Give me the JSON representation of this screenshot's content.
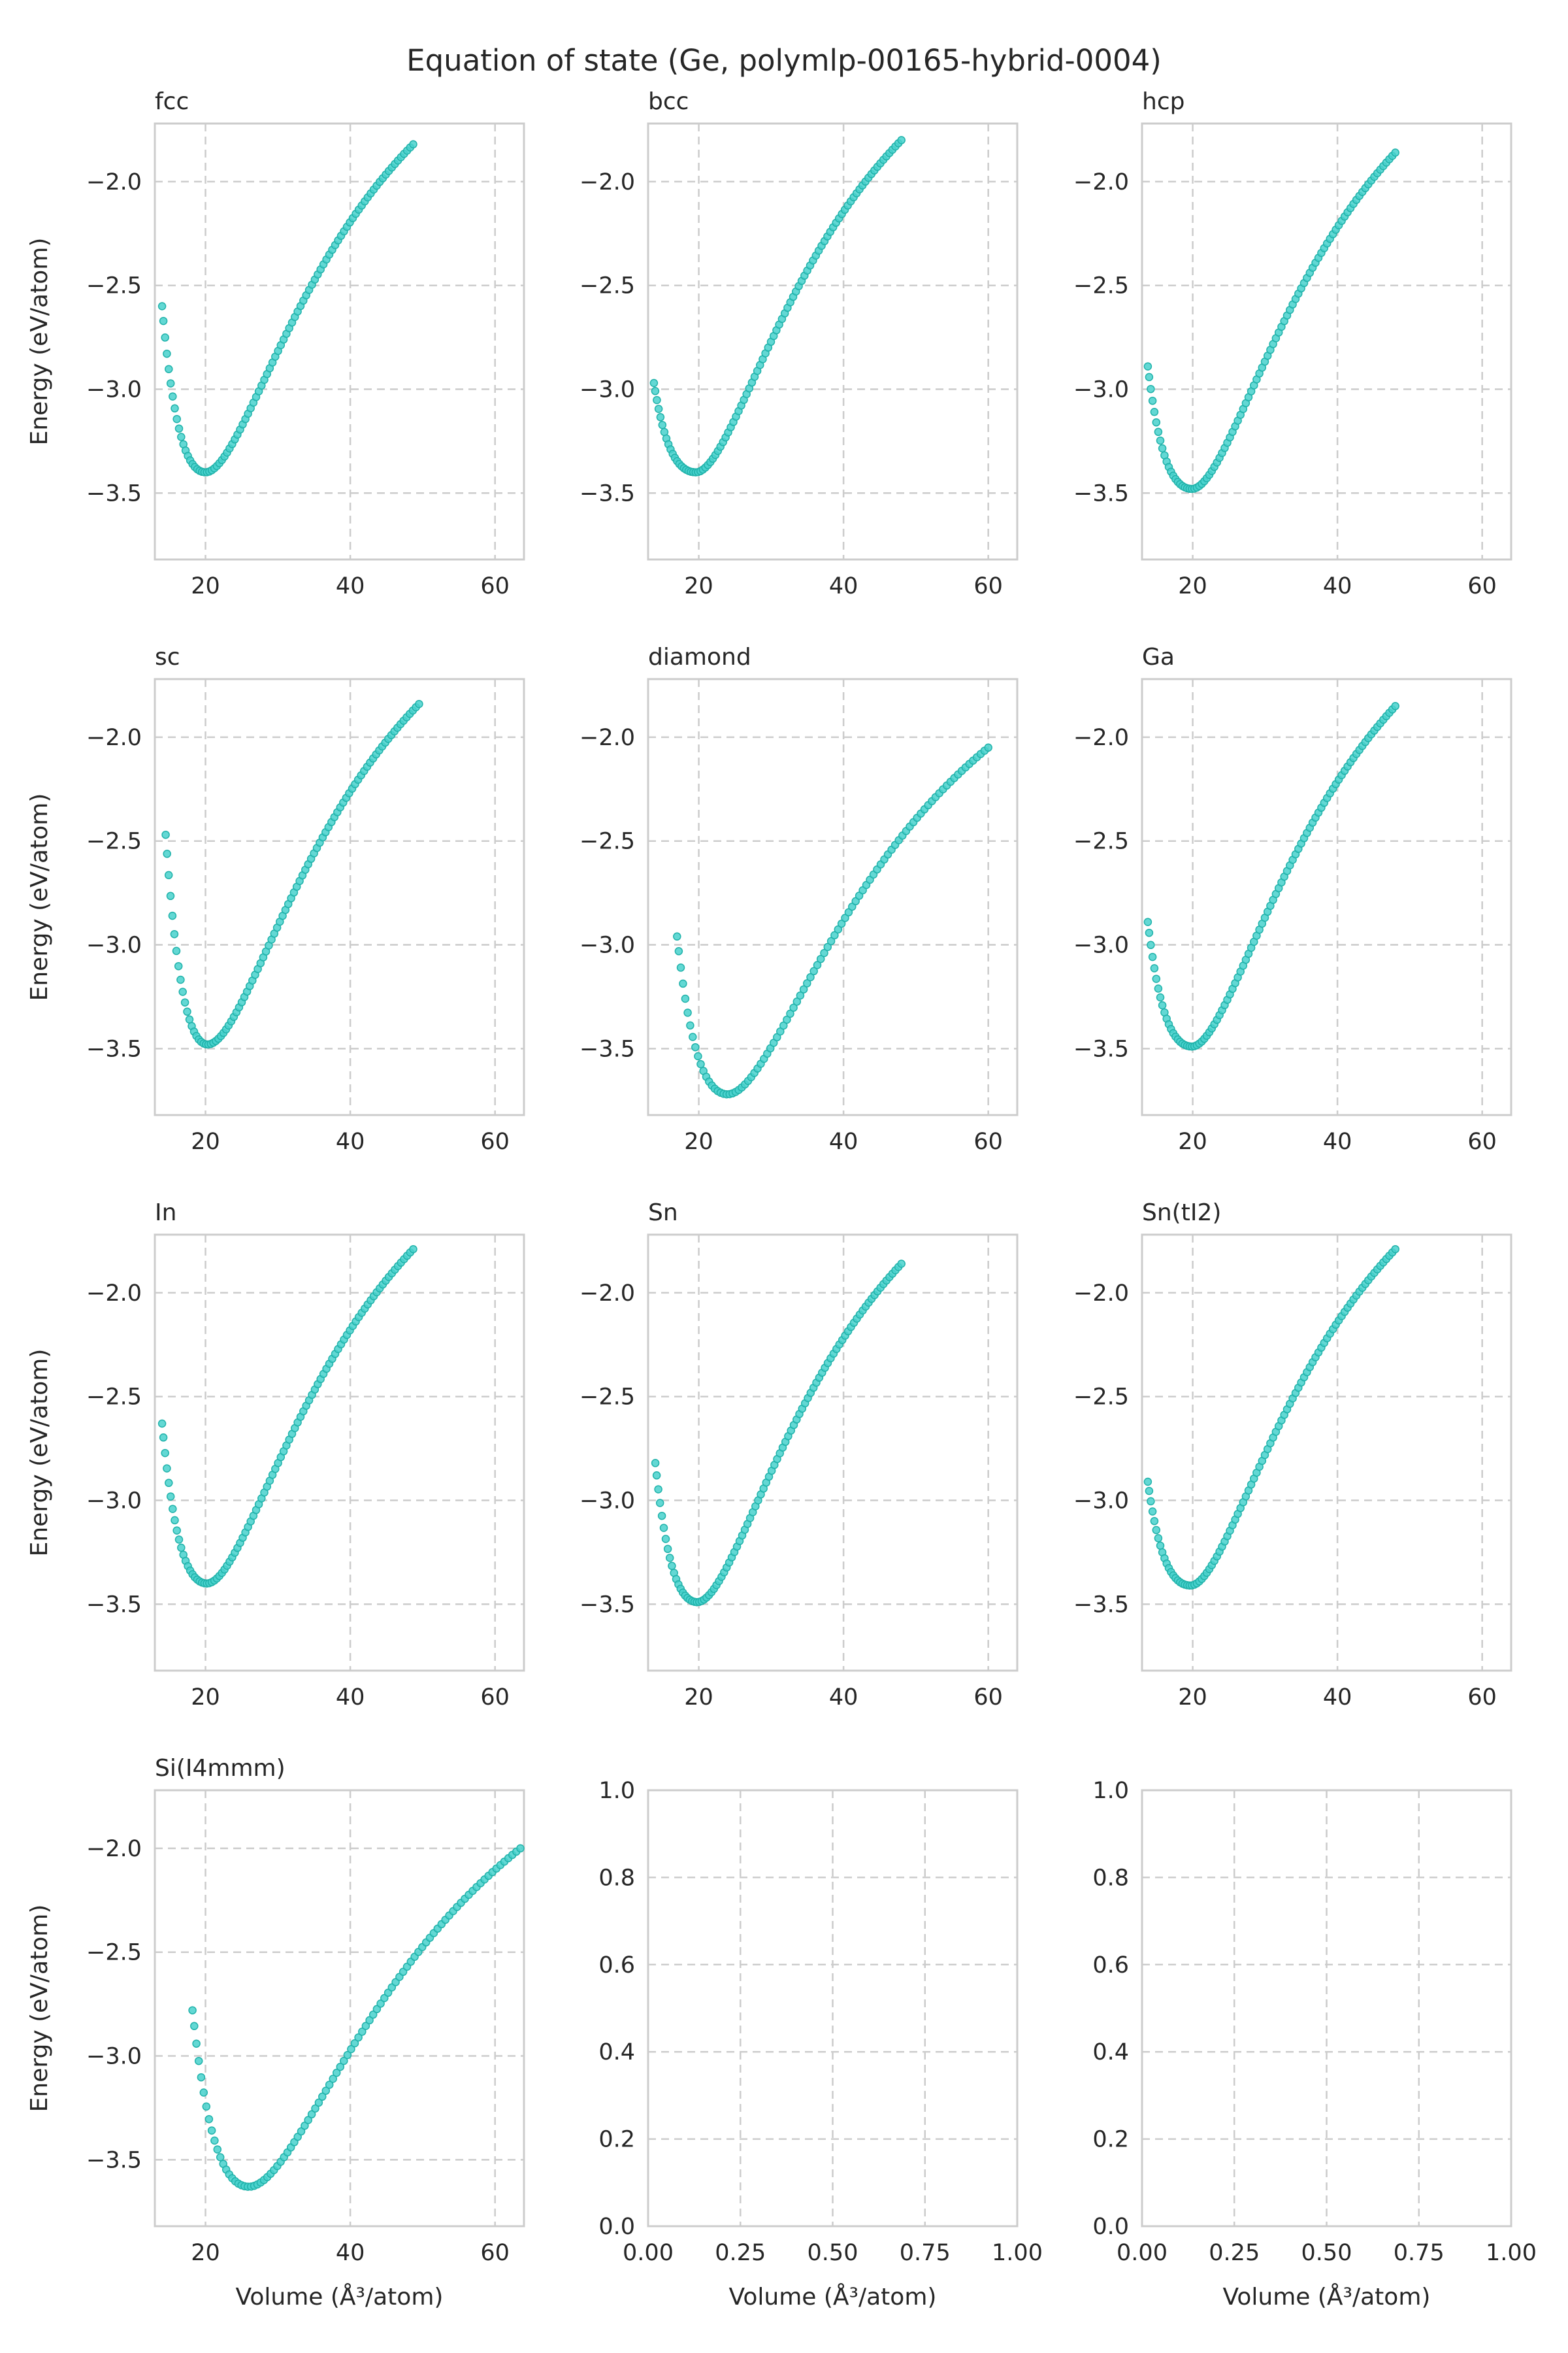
{
  "figure": {
    "title": "Equation of state (Ge, polymlp-00165-hybrid-0004)",
    "colors": {
      "marker_fill": "#48d1cc",
      "marker_edge": "#20b2aa",
      "grid": "#cccccc",
      "text": "#262626"
    }
  },
  "chart_data": [
    {
      "type": "scatter",
      "title": "fcc",
      "ylabel": "Energy (eV/atom)",
      "xlabel": "",
      "xlim": [
        13,
        64
      ],
      "ylim": [
        -3.82,
        -1.72
      ],
      "xticks": [
        20,
        40,
        60
      ],
      "yticks": [
        -3.5,
        -3.0,
        -2.5,
        -2.0
      ],
      "grid": true,
      "v0": 20.0,
      "e0": -3.4,
      "vmin": 14.0,
      "vmax": 48.7,
      "emin_v": -2.6,
      "emax_v": -1.82
    },
    {
      "type": "scatter",
      "title": "bcc",
      "ylabel": "",
      "xlabel": "",
      "xlim": [
        13,
        64
      ],
      "ylim": [
        -3.82,
        -1.72
      ],
      "xticks": [
        20,
        40,
        60
      ],
      "yticks": [
        -3.5,
        -3.0,
        -2.5,
        -2.0
      ],
      "grid": true,
      "v0": 19.6,
      "e0": -3.4,
      "vmin": 13.8,
      "vmax": 48.0,
      "emin_v": -2.97,
      "emax_v": -1.8
    },
    {
      "type": "scatter",
      "title": "hcp",
      "ylabel": "",
      "xlabel": "",
      "xlim": [
        13,
        64
      ],
      "ylim": [
        -3.82,
        -1.72
      ],
      "xticks": [
        20,
        40,
        60
      ],
      "yticks": [
        -3.5,
        -3.0,
        -2.5,
        -2.0
      ],
      "grid": true,
      "v0": 19.9,
      "e0": -3.48,
      "vmin": 13.8,
      "vmax": 48.0,
      "emin_v": -2.89,
      "emax_v": -1.86
    },
    {
      "type": "scatter",
      "title": "sc",
      "ylabel": "Energy (eV/atom)",
      "xlabel": "",
      "xlim": [
        13,
        64
      ],
      "ylim": [
        -3.82,
        -1.72
      ],
      "xticks": [
        20,
        40,
        60
      ],
      "yticks": [
        -3.5,
        -3.0,
        -2.5,
        -2.0
      ],
      "grid": true,
      "v0": 20.3,
      "e0": -3.48,
      "vmin": 14.5,
      "vmax": 49.5,
      "emin_v": -2.47,
      "emax_v": -1.84
    },
    {
      "type": "scatter",
      "title": "diamond",
      "ylabel": "",
      "xlabel": "",
      "xlim": [
        13,
        64
      ],
      "ylim": [
        -3.82,
        -1.72
      ],
      "xticks": [
        20,
        40,
        60
      ],
      "yticks": [
        -3.5,
        -3.0,
        -2.5,
        -2.0
      ],
      "grid": true,
      "v0": 24.0,
      "e0": -3.72,
      "vmin": 17.0,
      "vmax": 60.0,
      "emin_v": -2.96,
      "emax_v": -2.05
    },
    {
      "type": "scatter",
      "title": "Ga",
      "ylabel": "",
      "xlabel": "",
      "xlim": [
        13,
        64
      ],
      "ylim": [
        -3.82,
        -1.72
      ],
      "xticks": [
        20,
        40,
        60
      ],
      "yticks": [
        -3.5,
        -3.0,
        -2.5,
        -2.0
      ],
      "grid": true,
      "v0": 19.9,
      "e0": -3.49,
      "vmin": 13.8,
      "vmax": 48.0,
      "emin_v": -2.89,
      "emax_v": -1.85
    },
    {
      "type": "scatter",
      "title": "In",
      "ylabel": "Energy (eV/atom)",
      "xlabel": "",
      "xlim": [
        13,
        64
      ],
      "ylim": [
        -3.82,
        -1.72
      ],
      "xticks": [
        20,
        40,
        60
      ],
      "yticks": [
        -3.5,
        -3.0,
        -2.5,
        -2.0
      ],
      "grid": true,
      "v0": 20.2,
      "e0": -3.4,
      "vmin": 14.0,
      "vmax": 48.7,
      "emin_v": -2.63,
      "emax_v": -1.79
    },
    {
      "type": "scatter",
      "title": "Sn",
      "ylabel": "",
      "xlabel": "",
      "xlim": [
        13,
        64
      ],
      "ylim": [
        -3.82,
        -1.72
      ],
      "xticks": [
        20,
        40,
        60
      ],
      "yticks": [
        -3.5,
        -3.0,
        -2.5,
        -2.0
      ],
      "grid": true,
      "v0": 19.8,
      "e0": -3.49,
      "vmin": 14.0,
      "vmax": 48.0,
      "emin_v": -2.82,
      "emax_v": -1.86
    },
    {
      "type": "scatter",
      "title": "Sn(tI2)",
      "ylabel": "",
      "xlabel": "",
      "xlim": [
        13,
        64
      ],
      "ylim": [
        -3.82,
        -1.72
      ],
      "xticks": [
        20,
        40,
        60
      ],
      "yticks": [
        -3.5,
        -3.0,
        -2.5,
        -2.0
      ],
      "grid": true,
      "v0": 19.7,
      "e0": -3.41,
      "vmin": 13.8,
      "vmax": 48.0,
      "emin_v": -2.91,
      "emax_v": -1.79
    },
    {
      "type": "scatter",
      "title": "Si(I4mmm)",
      "ylabel": "Energy (eV/atom)",
      "xlabel": "Volume (Å³/atom)",
      "xlim": [
        13,
        64
      ],
      "ylim": [
        -3.82,
        -1.72
      ],
      "xticks": [
        20,
        40,
        60
      ],
      "yticks": [
        -3.5,
        -3.0,
        -2.5,
        -2.0
      ],
      "grid": true,
      "v0": 26.0,
      "e0": -3.63,
      "vmin": 18.2,
      "vmax": 63.5,
      "emin_v": -2.78,
      "emax_v": -2.0
    },
    {
      "type": "scatter",
      "title": "",
      "ylabel": "",
      "xlabel": "Volume (Å³/atom)",
      "xlim": [
        0,
        1
      ],
      "ylim": [
        0,
        1
      ],
      "xticks": [
        0.0,
        0.25,
        0.5,
        0.75,
        1.0
      ],
      "yticks": [
        0.0,
        0.2,
        0.4,
        0.6,
        0.8,
        1.0
      ],
      "grid": true,
      "empty": true
    },
    {
      "type": "scatter",
      "title": "",
      "ylabel": "",
      "xlabel": "Volume (Å³/atom)",
      "xlim": [
        0,
        1
      ],
      "ylim": [
        0,
        1
      ],
      "xticks": [
        0.0,
        0.25,
        0.5,
        0.75,
        1.0
      ],
      "yticks": [
        0.0,
        0.2,
        0.4,
        0.6,
        0.8,
        1.0
      ],
      "grid": true,
      "empty": true
    }
  ]
}
